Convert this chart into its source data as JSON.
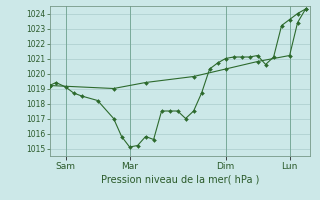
{
  "background_color": "#cce8e8",
  "grid_color": "#aacccc",
  "line_color": "#2d6a2d",
  "marker_color": "#2d6a2d",
  "xlabel": "Pression niveau de la mer( hPa )",
  "ylim": [
    1014.5,
    1024.5
  ],
  "yticks": [
    1015,
    1016,
    1017,
    1018,
    1019,
    1020,
    1021,
    1022,
    1023,
    1024
  ],
  "day_labels": [
    "Sam",
    "Mar",
    "Dim",
    "Lun"
  ],
  "day_positions": [
    0.5,
    2.5,
    5.5,
    7.5
  ],
  "vline_positions": [
    0.5,
    2.5,
    5.5,
    7.5
  ],
  "series1_x": [
    0.0,
    0.2,
    0.5,
    0.75,
    1.0,
    1.5,
    2.0,
    2.25,
    2.5,
    2.75,
    3.0,
    3.25,
    3.5,
    3.75,
    4.0,
    4.25,
    4.5,
    4.75,
    5.0,
    5.25,
    5.5,
    5.75,
    6.0,
    6.25,
    6.5,
    6.75,
    7.0,
    7.25,
    7.5,
    7.75,
    8.0
  ],
  "series1_y": [
    1019.2,
    1019.4,
    1019.1,
    1018.7,
    1018.5,
    1018.2,
    1017.0,
    1015.8,
    1015.1,
    1015.2,
    1015.8,
    1015.6,
    1017.5,
    1017.5,
    1017.5,
    1017.0,
    1017.5,
    1018.7,
    1020.3,
    1020.7,
    1021.0,
    1021.1,
    1021.1,
    1021.1,
    1021.2,
    1020.6,
    1021.1,
    1023.2,
    1023.6,
    1024.0,
    1024.3
  ],
  "series2_x": [
    0.0,
    2.0,
    3.0,
    4.5,
    5.5,
    6.5,
    7.5,
    7.75,
    8.0
  ],
  "series2_y": [
    1019.2,
    1019.0,
    1019.4,
    1019.8,
    1020.3,
    1020.8,
    1021.2,
    1023.4,
    1024.3
  ],
  "xlim": [
    0.0,
    8.15
  ]
}
